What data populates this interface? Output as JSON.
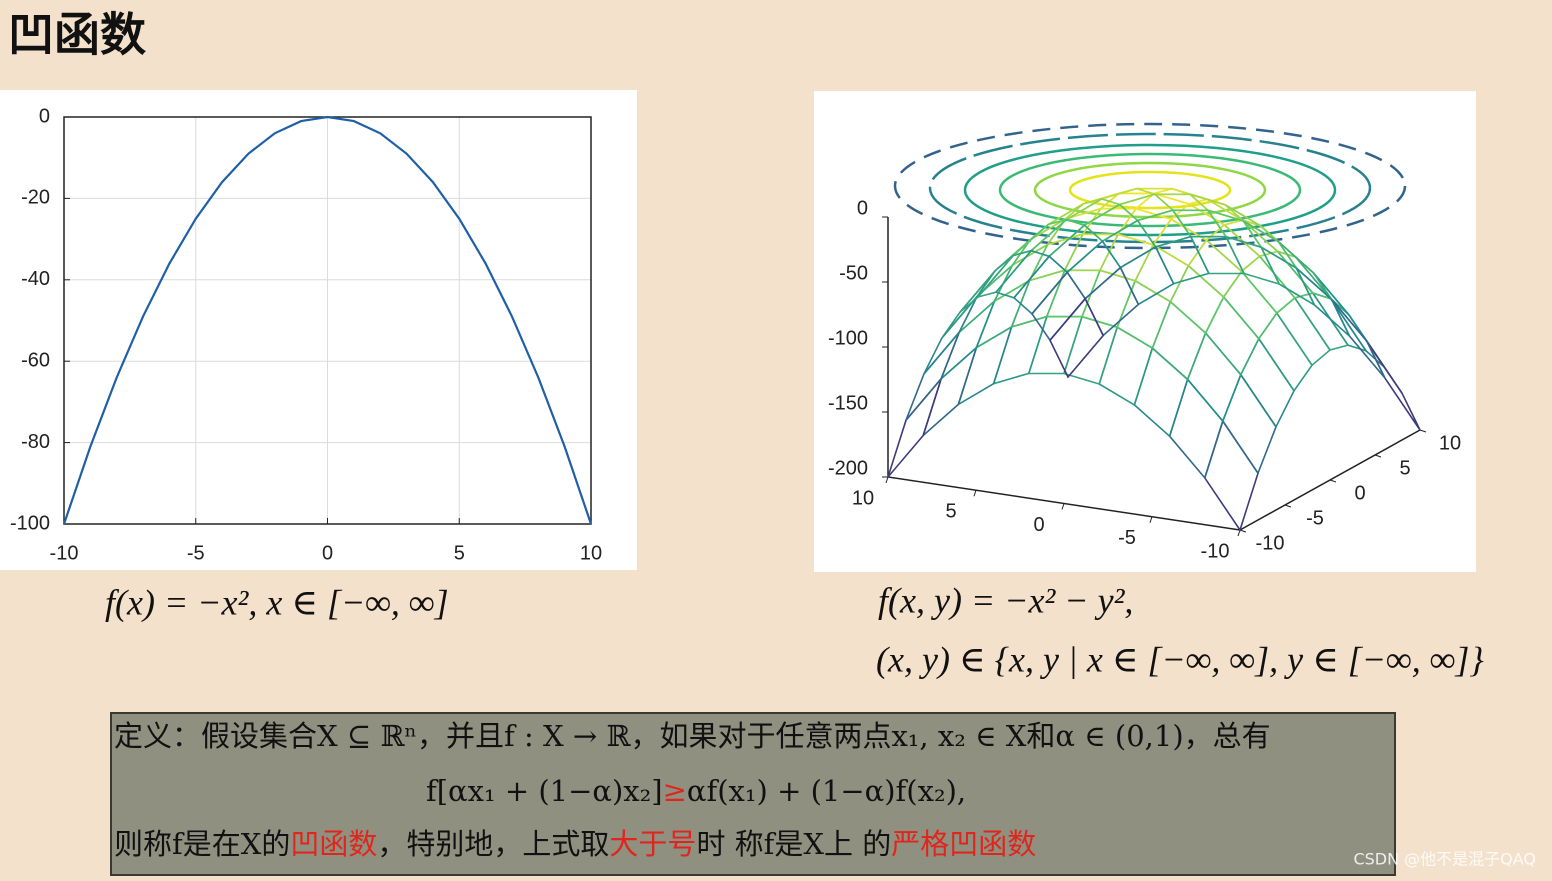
{
  "title": "凹函数",
  "chart_data": [
    {
      "type": "line",
      "x": [
        -10,
        -9,
        -8,
        -7,
        -6,
        -5,
        -4,
        -3,
        -2,
        -1,
        0,
        1,
        2,
        3,
        4,
        5,
        6,
        7,
        8,
        9,
        10
      ],
      "values": [
        -100,
        -81,
        -64,
        -49,
        -36,
        -25,
        -16,
        -9,
        -4,
        -1,
        0,
        -1,
        -4,
        -9,
        -16,
        -25,
        -36,
        -49,
        -64,
        -81,
        -100
      ],
      "color": "#1f5fa8",
      "xlim": [
        -10,
        10
      ],
      "ylim": [
        -100,
        0
      ],
      "xticks": [
        -10,
        -5,
        0,
        5,
        10
      ],
      "yticks": [
        0,
        -20,
        -40,
        -60,
        -80,
        -100
      ],
      "grid": true
    },
    {
      "type": "surface",
      "x": [
        -10,
        -8,
        -6,
        -4,
        -2,
        0,
        2,
        4,
        6,
        8,
        10
      ],
      "y": [
        -10,
        -8,
        -6,
        -4,
        -2,
        0,
        2,
        4,
        6,
        8,
        10
      ],
      "z": [
        [
          -200,
          -164,
          -136,
          -116,
          -104,
          -100,
          -104,
          -116,
          -136,
          -164,
          -200
        ],
        [
          -164,
          -128,
          -100,
          -80,
          -68,
          -64,
          -68,
          -80,
          -100,
          -128,
          -164
        ],
        [
          -136,
          -100,
          -72,
          -52,
          -40,
          -36,
          -40,
          -52,
          -72,
          -100,
          -136
        ],
        [
          -116,
          -80,
          -52,
          -32,
          -20,
          -16,
          -20,
          -32,
          -52,
          -80,
          -116
        ],
        [
          -104,
          -68,
          -40,
          -20,
          -8,
          -4,
          -8,
          -20,
          -40,
          -68,
          -104
        ],
        [
          -100,
          -64,
          -36,
          -16,
          -4,
          0,
          -4,
          -16,
          -36,
          -64,
          -100
        ],
        [
          -104,
          -68,
          -40,
          -20,
          -8,
          -4,
          -8,
          -20,
          -40,
          -68,
          -104
        ],
        [
          -116,
          -80,
          -52,
          -32,
          -20,
          -16,
          -20,
          -32,
          -52,
          -80,
          -116
        ],
        [
          -136,
          -100,
          -72,
          -52,
          -40,
          -36,
          -40,
          -52,
          -72,
          -100,
          -136
        ],
        [
          -164,
          -128,
          -100,
          -80,
          -68,
          -64,
          -68,
          -80,
          -100,
          -128,
          -164
        ],
        [
          -200,
          -164,
          -136,
          -116,
          -104,
          -100,
          -104,
          -116,
          -136,
          -164,
          -200
        ]
      ],
      "colormap": "viridis",
      "xlim": [
        -10,
        10
      ],
      "ylim": [
        -10,
        10
      ],
      "zlim": [
        -200,
        0
      ],
      "xticks": [
        10,
        5,
        0,
        -5,
        -10
      ],
      "yticks": [
        -10,
        -5,
        0,
        5,
        10
      ],
      "zticks": [
        0,
        -50,
        -100,
        -150,
        -200
      ]
    }
  ],
  "formulas": {
    "left": "f(x) = −x², x ∈ [−∞, ∞]",
    "right_1": "f(x, y) = −x² − y²,",
    "right_2": "(x, y) ∈ {x, y | x ∈ [−∞, ∞], y ∈ [−∞, ∞]}"
  },
  "definition": {
    "line1": "定义：假设集合X ⊆ ℝⁿ，并且f : X → ℝ，如果对于任意两点x₁, x₂ ∈ X和α ∈ (0,1)，总有",
    "line2": [
      "f[αx₁ + (1−α)x₂]",
      "≥",
      "αf(x₁) + (1−α)f(x₂),"
    ],
    "line3": [
      "则称f是在X的",
      "凹函数",
      "，特别地，上式取",
      "大于号",
      "时 称f是X上 的",
      "严格凹函数"
    ]
  },
  "watermark": "CSDN @他不是混子QAQ"
}
